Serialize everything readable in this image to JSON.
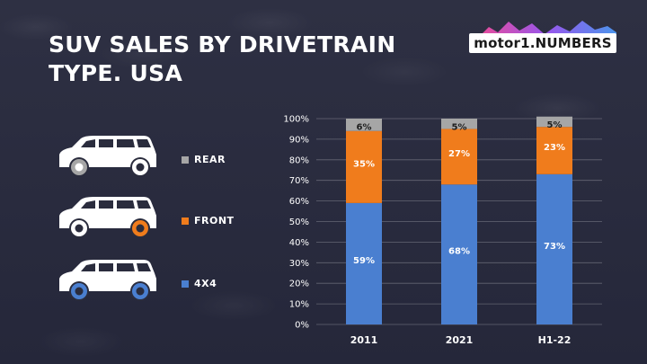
{
  "title": "SUV SALES BY DRIVETRAIN TYPE. USA",
  "logo": {
    "text": "motor1.NUMBERS"
  },
  "colors": {
    "rear": "#a6a6a6",
    "front": "#f07c1c",
    "4x4": "#4a7fd0",
    "background": "#2a2c3d"
  },
  "legend": [
    {
      "key": "rear",
      "label": "REAR",
      "icon": "suv-icon-rear-wheels-gray"
    },
    {
      "key": "front",
      "label": "FRONT",
      "icon": "suv-icon-front-wheels-orange"
    },
    {
      "key": "4x4",
      "label": "4X4",
      "icon": "suv-icon-all-wheels-blue"
    }
  ],
  "chart_data": {
    "type": "bar",
    "stacked": true,
    "categories": [
      "2011",
      "2021",
      "H1-22"
    ],
    "series": [
      {
        "name": "4X4",
        "color": "#4a7fd0",
        "values": [
          59,
          68,
          73
        ],
        "labels": [
          "59%",
          "68%",
          "73%"
        ]
      },
      {
        "name": "FRONT",
        "color": "#f07c1c",
        "values": [
          35,
          27,
          23
        ],
        "labels": [
          "35%",
          "27%",
          "23%"
        ]
      },
      {
        "name": "REAR",
        "color": "#a6a6a6",
        "values": [
          6,
          5,
          5
        ],
        "labels": [
          "6%",
          "5%",
          "5%"
        ]
      }
    ],
    "yticks": [
      "0%",
      "10%",
      "20%",
      "30%",
      "40%",
      "50%",
      "60%",
      "70%",
      "80%",
      "90%",
      "100%"
    ],
    "ylim": [
      0,
      100
    ],
    "grid": true,
    "legend_position": "left"
  }
}
